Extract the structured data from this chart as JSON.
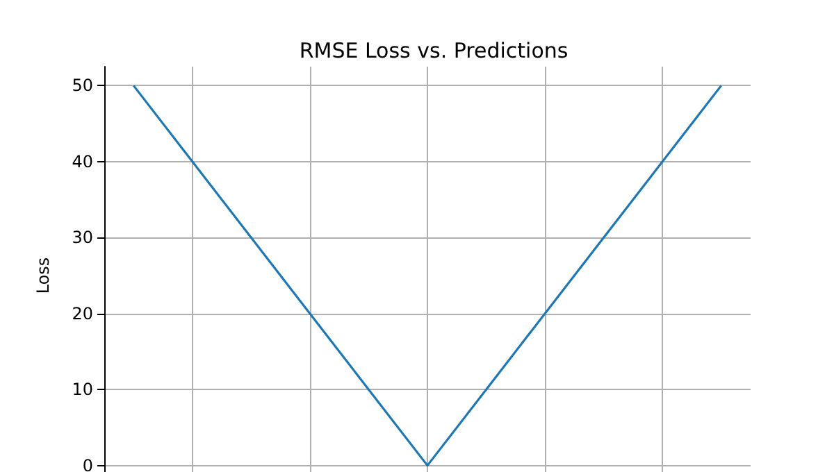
{
  "chart_data": {
    "type": "line",
    "title": "RMSE Loss vs. Predictions",
    "ylabel": "Loss",
    "categories": [
      null,
      null,
      null,
      null,
      null,
      null,
      null,
      null,
      null,
      null,
      null
    ],
    "series": [
      {
        "color": "#1f77b4",
        "values": [
          50,
          40,
          30,
          20,
          10,
          0,
          10,
          20,
          30,
          40,
          50
        ]
      }
    ],
    "ylim": [
      -2.5,
      52.5
    ],
    "yticks": [
      0,
      10,
      20,
      30,
      40,
      50
    ],
    "grid": true,
    "tick_labels": "y",
    "marker": "none",
    "line_style": "solid"
  }
}
